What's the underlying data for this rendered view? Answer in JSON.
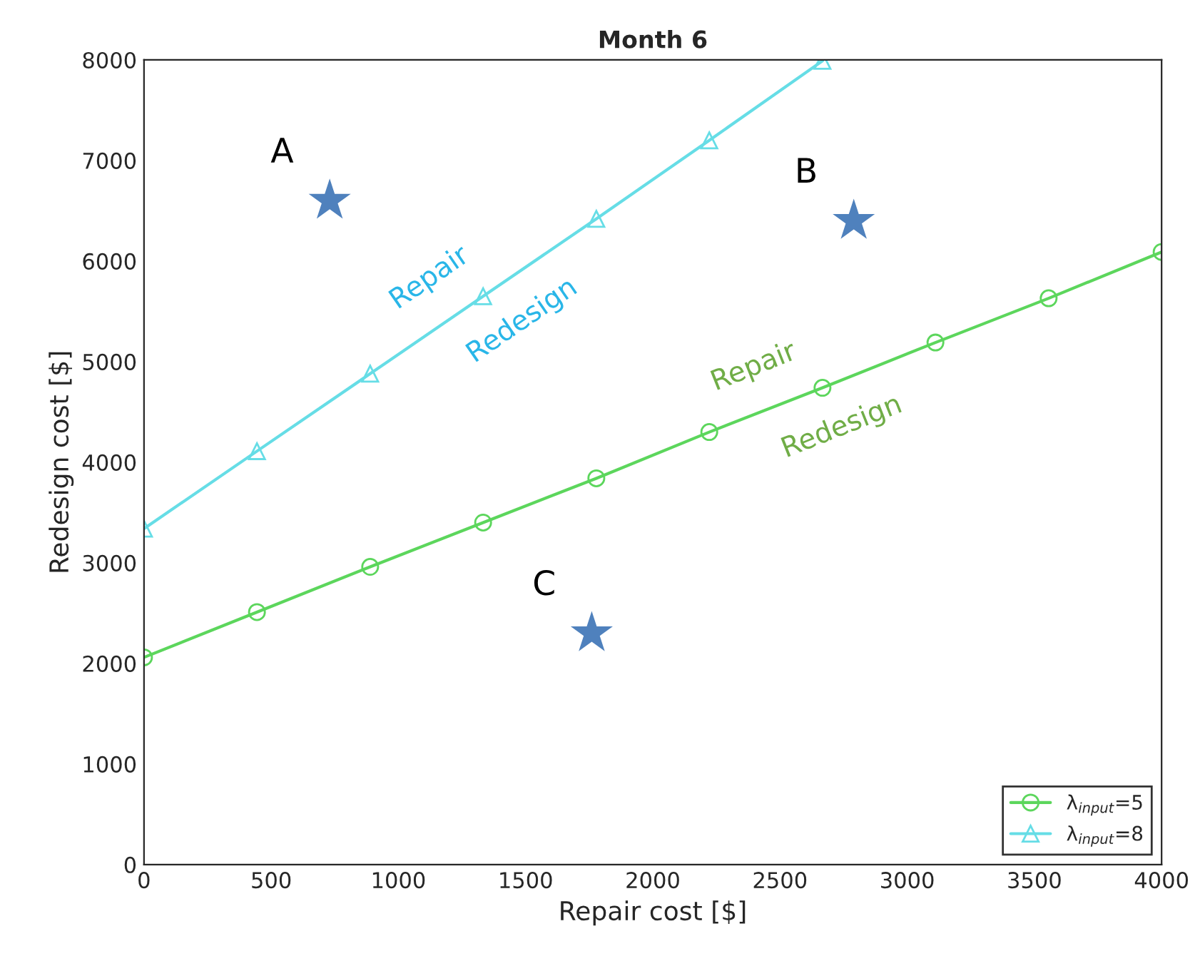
{
  "chart_data": {
    "type": "line",
    "title": "Month 6",
    "xlabel": "Repair cost [$]",
    "ylabel": "Redesign cost [$]",
    "xlim": [
      0,
      4000
    ],
    "xticks": [
      0,
      500,
      1000,
      1500,
      2000,
      2500,
      3000,
      3500,
      4000
    ],
    "ylim": [
      0,
      8000
    ],
    "yticks": [
      0,
      1000,
      2000,
      3000,
      4000,
      5000,
      6000,
      7000,
      8000
    ],
    "grid": false,
    "legend": "bottom right",
    "line_style": "solid",
    "series": [
      {
        "name": "λ$_{input}$=5",
        "color": "#5cd65c",
        "marker": "circle",
        "x": [
          0,
          444,
          889,
          1333,
          1778,
          2222,
          2667,
          3111,
          3556,
          4000
        ],
        "values": [
          2060,
          2510,
          2960,
          3400,
          3840,
          4300,
          4740,
          5190,
          5630,
          6090
        ]
      },
      {
        "name": "λ$_{input}$=8",
        "color": "#66dde6",
        "marker": "triangle",
        "x": [
          0,
          444,
          889,
          1333,
          1778,
          2222,
          2667
        ],
        "values": [
          3340,
          4110,
          4880,
          5650,
          6420,
          7200,
          7990
        ]
      },
      {
        "type": "scatter",
        "color": "#4f81bd",
        "marker": "star",
        "x": [
          730,
          2790,
          1760
        ],
        "values": [
          6600,
          6400,
          2300
        ]
      }
    ],
    "annotations": [
      {
        "text": "A",
        "x": 730,
        "y": 6600
      },
      {
        "text": "B",
        "x": 2790,
        "y": 6400
      },
      {
        "text": "C",
        "x": 1760,
        "y": 2300
      },
      {
        "text": "Repair",
        "x": 1220,
        "y": 5470
      },
      {
        "text": "Redesign",
        "x": 1390,
        "y": 5760
      },
      {
        "text": "Repair",
        "x": 2460,
        "y": 4540
      },
      {
        "text": "Redesign",
        "x": 2680,
        "y": 4750
      }
    ]
  }
}
